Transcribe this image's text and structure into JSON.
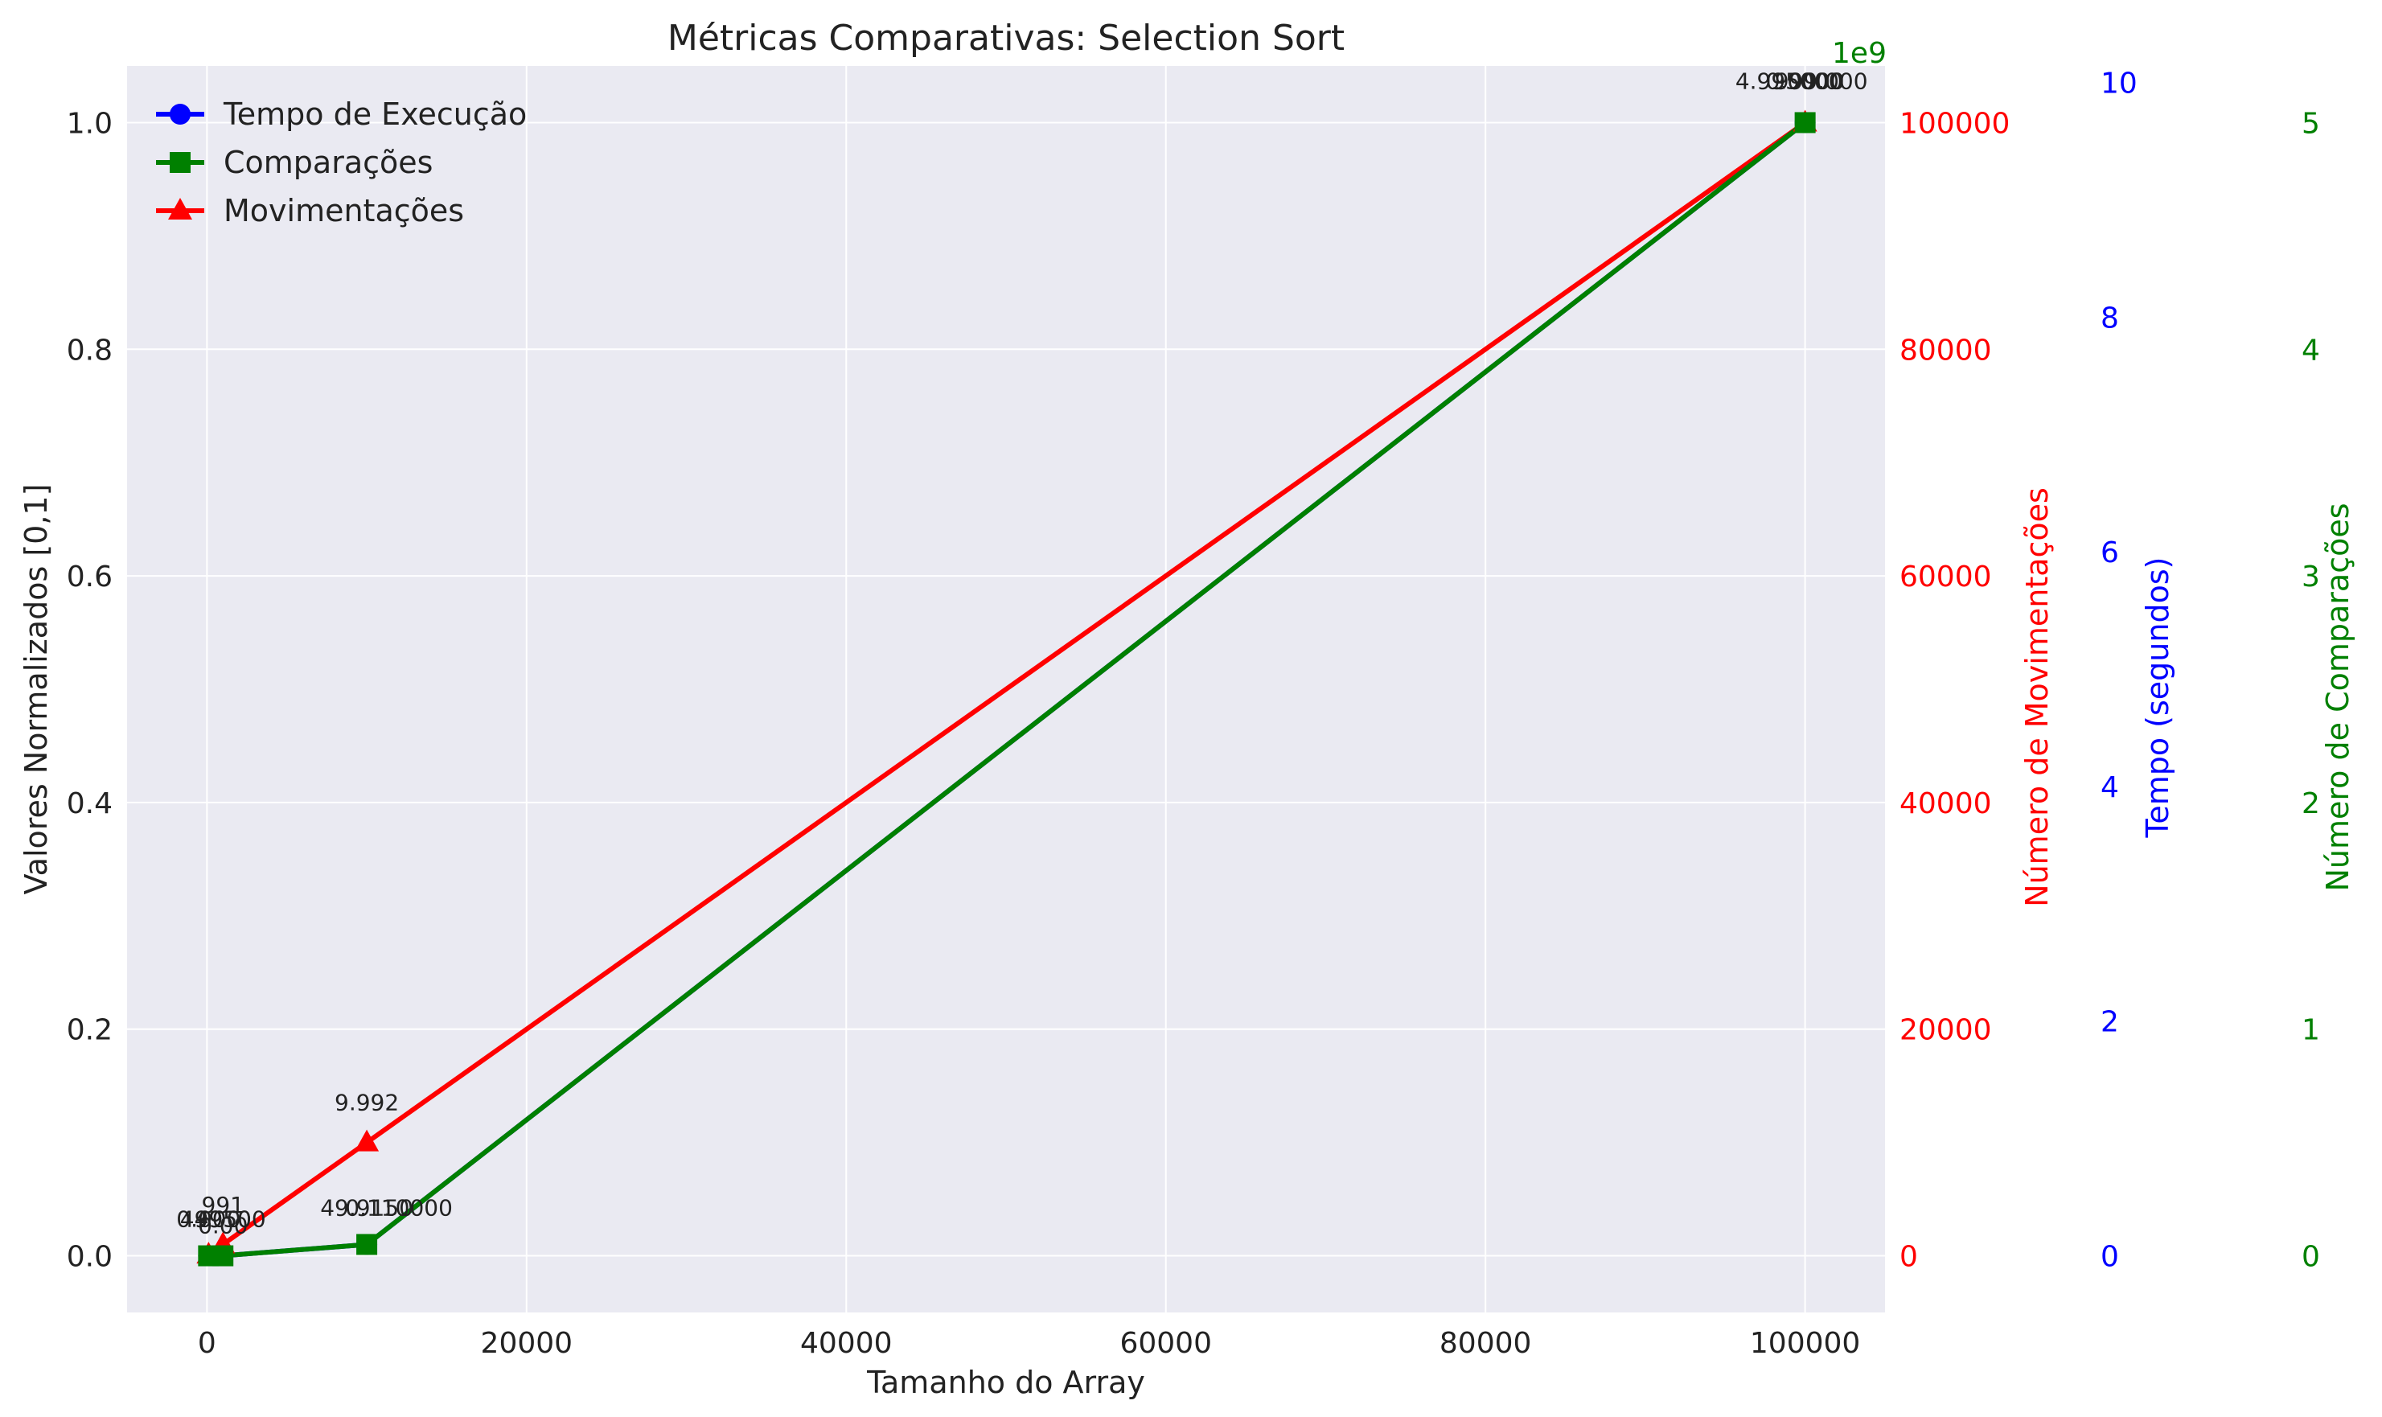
{
  "chart_data": {
    "type": "line",
    "title": "Métricas Comparativas: Selection Sort",
    "xlabel": "Tamanho do Array",
    "ylabel": "Valores Normalizados [0,1]",
    "x": [
      100,
      1000,
      10000,
      100000
    ],
    "xlim": [
      -5000,
      105000
    ],
    "ylim": [
      -0.05,
      1.05
    ],
    "x_ticks": [
      "0",
      "20000",
      "40000",
      "60000",
      "80000",
      "100000"
    ],
    "y_ticks": [
      "0.0",
      "0.2",
      "0.4",
      "0.6",
      "0.8",
      "1.0"
    ],
    "grid": true,
    "legend_position": "top-left",
    "series": [
      {
        "name": "Tempo de Execução",
        "marker": "circle",
        "color": "#0000ff",
        "values": [
          0.0,
          0.0,
          0.01,
          1.0
        ]
      },
      {
        "name": "Comparações",
        "marker": "square",
        "color": "#008000",
        "values": [
          0.0,
          0.0,
          0.01,
          1.0
        ]
      },
      {
        "name": "Movimentações",
        "marker": "triangle",
        "color": "#ff0000",
        "values": [
          0.001,
          0.01,
          0.1,
          1.0
        ]
      }
    ],
    "secondary_axes": [
      {
        "label": "Número de Movimentações",
        "color": "#ff0000",
        "ticks": [
          "0",
          "20000",
          "40000",
          "60000",
          "80000",
          "100000"
        ],
        "offset_label": ""
      },
      {
        "label": "Tempo (segundos)",
        "color": "#0000ff",
        "ticks": [
          "0",
          "2",
          "4",
          "6",
          "8",
          "10"
        ],
        "offset_label": ""
      },
      {
        "label": "Número de Comparações",
        "color": "#008000",
        "ticks": [
          "0",
          "1",
          "2",
          "3",
          "4",
          "5"
        ],
        "offset_label": "1e9"
      }
    ],
    "annotations": [
      "991",
      "0.000",
      "4950",
      "0.00",
      "499500",
      "9.992",
      "49.9150",
      "0.110000",
      "4.995000",
      "0.0000",
      "999.000"
    ]
  }
}
